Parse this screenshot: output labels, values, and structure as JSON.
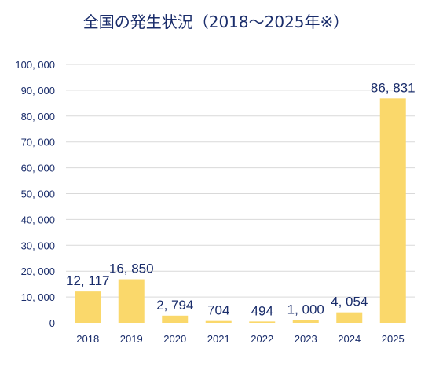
{
  "chart_data": {
    "type": "bar",
    "title": "全国の発生状況（2018～2025年※）",
    "categories": [
      "2018",
      "2019",
      "2020",
      "2021",
      "2022",
      "2023",
      "2024",
      "2025"
    ],
    "values": [
      12117,
      16850,
      2794,
      704,
      494,
      1000,
      4054,
      86831
    ],
    "value_labels": [
      "12, 117",
      "16, 850",
      "2, 794",
      "704",
      "494",
      "1, 000",
      "4, 054",
      "86, 831"
    ],
    "y_ticks": [
      0,
      10000,
      20000,
      30000,
      40000,
      50000,
      60000,
      70000,
      80000,
      90000,
      100000
    ],
    "y_tick_labels": [
      "0",
      "10, 000",
      "20, 000",
      "30, 000",
      "40, 000",
      "50, 000",
      "60, 000",
      "70, 000",
      "80, 000",
      "90, 000",
      "100, 000"
    ],
    "ylim": [
      0,
      100000
    ],
    "xlabel": "",
    "ylabel": "",
    "grid": true,
    "colors": {
      "bar": "#fad86b",
      "grid": "#d9d9d9",
      "text": "#1a2d6b"
    }
  }
}
